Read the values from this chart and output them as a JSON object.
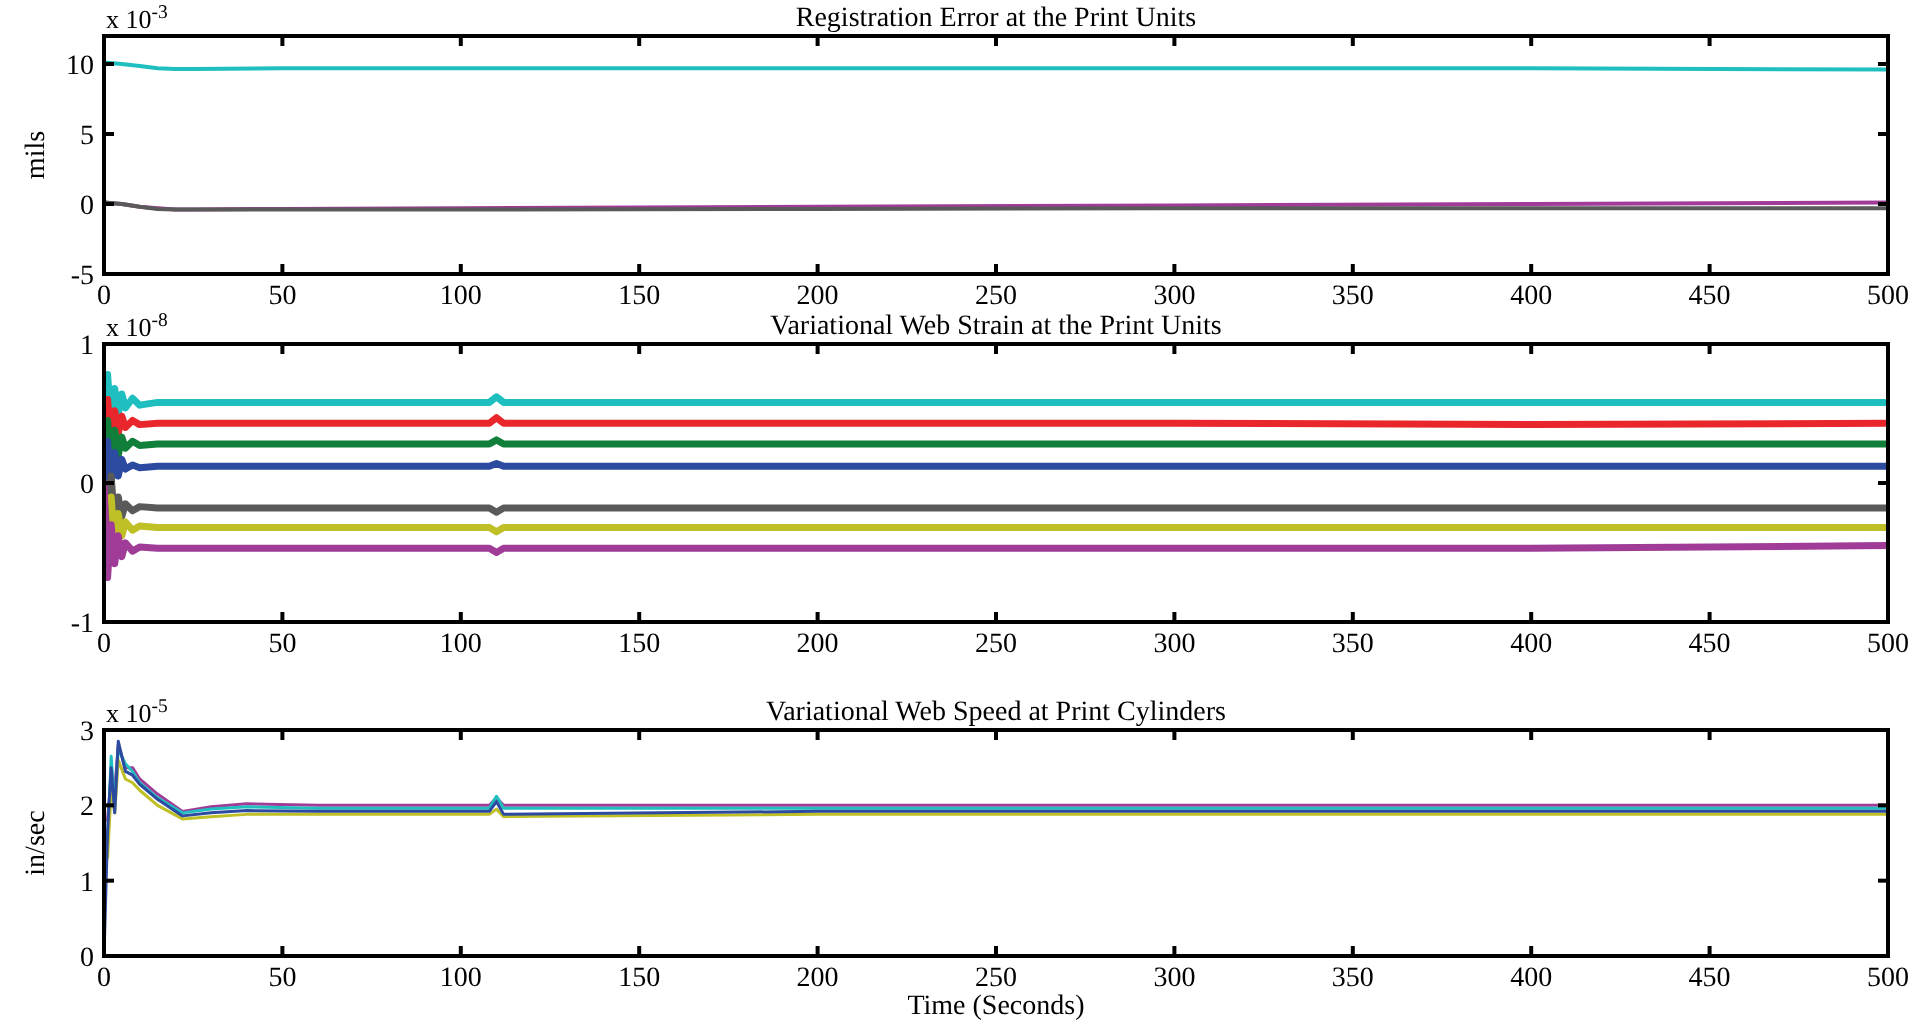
{
  "chart_data": [
    {
      "type": "line",
      "title": "Registration Error at the Print Units",
      "ylabel": "mils",
      "annotations": [
        "x 10$^{-3}$"
      ],
      "x": [
        0,
        5,
        10,
        15,
        20,
        25,
        50,
        100,
        200,
        300,
        400,
        500
      ],
      "series": [
        {
          "color": "#1fbfbf",
          "values": [
            10.1,
            10.0,
            9.85,
            9.7,
            9.65,
            9.65,
            9.7,
            9.7,
            9.7,
            9.7,
            9.7,
            9.6
          ]
        },
        {
          "color": "#a03c98",
          "values": [
            0.1,
            0,
            -0.2,
            -0.3,
            -0.4,
            -0.4,
            -0.35,
            -0.3,
            -0.2,
            -0.1,
            0,
            0.1
          ]
        },
        {
          "color": "#5a5a5a",
          "values": [
            0.1,
            0,
            -0.2,
            -0.35,
            -0.4,
            -0.4,
            -0.4,
            -0.4,
            -0.35,
            -0.3,
            -0.3,
            -0.3
          ]
        }
      ],
      "xlim": [
        0,
        500
      ],
      "xticks": [
        0,
        50,
        100,
        150,
        200,
        250,
        300,
        350,
        400,
        450,
        500
      ],
      "ylim": [
        -5,
        12
      ],
      "yticks": [
        -5,
        0,
        5,
        10
      ]
    },
    {
      "type": "line",
      "title": "Variational Web Strain at the Print Units",
      "annotations": [
        "x 10$^{-8}$"
      ],
      "x": [
        0,
        1,
        2,
        3,
        4,
        5,
        6,
        8,
        10,
        15,
        20,
        50,
        108,
        110,
        112,
        200,
        300,
        400,
        500
      ],
      "series": [
        {
          "color": "#1fbfbf",
          "values": [
            0,
            0.78,
            0.43,
            0.68,
            0.5,
            0.64,
            0.54,
            0.61,
            0.56,
            0.58,
            0.58,
            0.58,
            0.58,
            0.62,
            0.58,
            0.58,
            0.58,
            0.58,
            0.58
          ]
        },
        {
          "color": "#e8262b",
          "values": [
            0,
            0.6,
            0.3,
            0.52,
            0.36,
            0.48,
            0.4,
            0.45,
            0.42,
            0.43,
            0.43,
            0.43,
            0.43,
            0.47,
            0.43,
            0.43,
            0.43,
            0.42,
            0.43
          ]
        },
        {
          "color": "#0f7f3a",
          "values": [
            0,
            0.45,
            0.15,
            0.38,
            0.2,
            0.33,
            0.25,
            0.3,
            0.27,
            0.28,
            0.28,
            0.28,
            0.28,
            0.31,
            0.28,
            0.28,
            0.28,
            0.28,
            0.28
          ]
        },
        {
          "color": "#2b4aa0",
          "values": [
            0,
            0.3,
            0.0,
            0.22,
            0.05,
            0.17,
            0.1,
            0.13,
            0.11,
            0.12,
            0.12,
            0.12,
            0.12,
            0.14,
            0.12,
            0.12,
            0.12,
            0.12,
            0.12
          ]
        },
        {
          "color": "#5a5a5a",
          "values": [
            0,
            -0.4,
            0.05,
            -0.3,
            -0.1,
            -0.24,
            -0.15,
            -0.2,
            -0.17,
            -0.18,
            -0.18,
            -0.18,
            -0.18,
            -0.21,
            -0.18,
            -0.18,
            -0.18,
            -0.18,
            -0.18
          ]
        },
        {
          "color": "#bfbf26",
          "values": [
            null,
            null,
            -0.1,
            -0.45,
            -0.22,
            -0.38,
            -0.28,
            -0.34,
            -0.31,
            -0.32,
            -0.32,
            -0.32,
            -0.32,
            -0.35,
            -0.32,
            -0.32,
            -0.32,
            -0.32,
            -0.32
          ]
        },
        {
          "color": "#a03c98",
          "values": [
            0,
            -0.68,
            -0.3,
            -0.58,
            -0.38,
            -0.53,
            -0.43,
            -0.49,
            -0.46,
            -0.47,
            -0.47,
            -0.47,
            -0.47,
            -0.5,
            -0.47,
            -0.47,
            -0.47,
            -0.47,
            -0.45
          ]
        }
      ],
      "xlim": [
        0,
        500
      ],
      "xticks": [
        0,
        50,
        100,
        150,
        200,
        250,
        300,
        350,
        400,
        450,
        500
      ],
      "ylim": [
        -1,
        1
      ],
      "yticks": [
        -1,
        0,
        1
      ]
    },
    {
      "type": "line",
      "title": "Variational Web Speed at Print Cylinders",
      "ylabel": "in/sec",
      "xlabel": "Time (Seconds)",
      "annotations": [
        "x 10$^{-5}$"
      ],
      "x": [
        0,
        1,
        2,
        3,
        4,
        6,
        8,
        10,
        15,
        22,
        30,
        40,
        60,
        108,
        110,
        112,
        200,
        300,
        400,
        500
      ],
      "series": [
        {
          "color": "#a03c98",
          "values": [
            null,
            1.8,
            2.4,
            2.2,
            2.8,
            2.5,
            2.5,
            2.35,
            2.15,
            1.92,
            1.98,
            2.02,
            2.0,
            2.0,
            2.1,
            2.0,
            2.0,
            2.0,
            2.0,
            2.0
          ]
        },
        {
          "color": "#1fbfbf",
          "values": [
            null,
            1.5,
            2.65,
            2.0,
            2.75,
            2.55,
            2.45,
            2.3,
            2.1,
            1.9,
            1.95,
            1.98,
            1.96,
            1.96,
            2.12,
            1.96,
            1.96,
            1.96,
            1.96,
            1.96
          ]
        },
        {
          "color": "#bfbf26",
          "values": [
            null,
            1.3,
            2.2,
            1.9,
            2.6,
            2.35,
            2.3,
            2.2,
            2.0,
            1.82,
            1.85,
            1.88,
            1.88,
            1.88,
            1.95,
            1.85,
            1.88,
            1.88,
            1.88,
            1.88
          ]
        },
        {
          "color": "#2b4aa0",
          "values": [
            0,
            1.65,
            2.5,
            1.9,
            2.85,
            2.45,
            2.4,
            2.28,
            2.08,
            1.86,
            1.9,
            1.93,
            1.92,
            1.92,
            2.05,
            1.88,
            1.92,
            1.92,
            1.92,
            1.92
          ]
        }
      ],
      "xlim": [
        0,
        500
      ],
      "xticks": [
        0,
        50,
        100,
        150,
        200,
        250,
        300,
        350,
        400,
        450,
        500
      ],
      "ylim": [
        0,
        3
      ],
      "yticks": [
        0,
        1,
        2,
        3
      ]
    }
  ]
}
